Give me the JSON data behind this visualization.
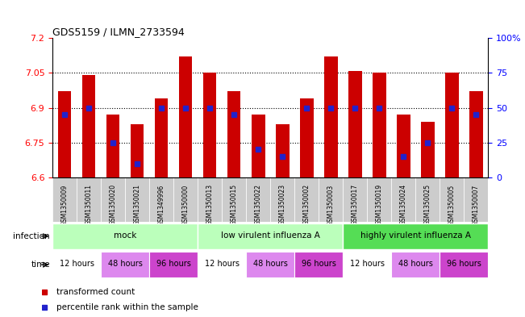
{
  "title": "GDS5159 / ILMN_2733594",
  "samples": [
    "GSM1350009",
    "GSM1350011",
    "GSM1350020",
    "GSM1350021",
    "GSM1349996",
    "GSM1350000",
    "GSM1350013",
    "GSM1350015",
    "GSM1350022",
    "GSM1350023",
    "GSM1350002",
    "GSM1350003",
    "GSM1350017",
    "GSM1350019",
    "GSM1350024",
    "GSM1350025",
    "GSM1350005",
    "GSM1350007"
  ],
  "transformed_counts": [
    6.97,
    7.04,
    6.87,
    6.83,
    6.94,
    7.12,
    7.05,
    6.97,
    6.87,
    6.83,
    6.94,
    7.12,
    7.06,
    7.05,
    6.87,
    6.84,
    7.05,
    6.97
  ],
  "percentile_ranks": [
    45,
    50,
    25,
    10,
    50,
    50,
    50,
    45,
    20,
    15,
    50,
    50,
    50,
    50,
    15,
    25,
    50,
    45
  ],
  "ylim": [
    6.6,
    7.2
  ],
  "yticks": [
    6.6,
    6.75,
    6.9,
    7.05,
    7.2
  ],
  "ytick_labels": [
    "6.6",
    "6.75",
    "6.9",
    "7.05",
    "7.2"
  ],
  "right_yticks": [
    0,
    25,
    50,
    75,
    100
  ],
  "right_ytick_labels": [
    "0",
    "25",
    "50",
    "75",
    "100%"
  ],
  "bar_color": "#cc0000",
  "dot_color": "#2222cc",
  "bar_width": 0.55,
  "infection_mock_color": "#bbffbb",
  "infection_high_color": "#55dd55",
  "time_12_color": "#ffffff",
  "time_48_color": "#dd88ee",
  "time_96_color": "#cc44cc",
  "sample_bg_color": "#cccccc",
  "grid_color": "#000000"
}
